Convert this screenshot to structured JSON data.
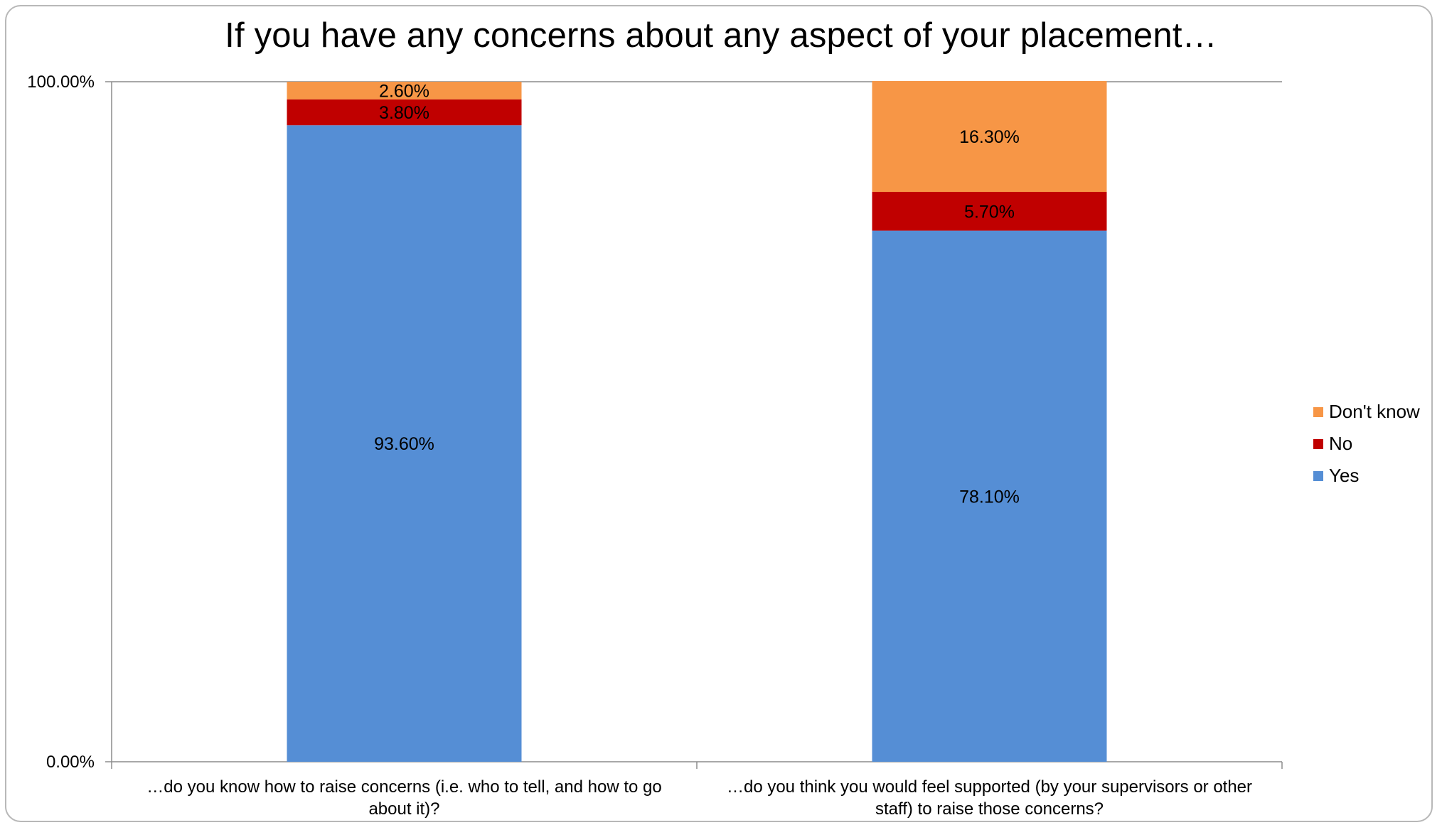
{
  "chart_data": {
    "type": "bar",
    "stacked": true,
    "title": "If you have any concerns about any aspect of your placement…",
    "categories": [
      [
        "…do you know how to raise concerns (i.e. who to tell, and how to go",
        "about it)?"
      ],
      [
        "…do you think you would feel supported (by your supervisors or other",
        "staff) to raise those concerns?"
      ]
    ],
    "series": [
      {
        "name": "Yes",
        "color": "#558ed5",
        "values": [
          93.6,
          78.1
        ],
        "labels": [
          "93.60%",
          "78.10%"
        ]
      },
      {
        "name": "No",
        "color": "#c00000",
        "values": [
          3.8,
          5.7
        ],
        "labels": [
          "3.80%",
          "5.70%"
        ]
      },
      {
        "name": "Don't know",
        "color": "#f79646",
        "values": [
          2.6,
          16.3
        ],
        "labels": [
          "2.60%",
          "16.30%"
        ]
      }
    ],
    "ylim": [
      0,
      100
    ],
    "yticks": [
      {
        "value": 0,
        "label": "0.00%"
      },
      {
        "value": 100,
        "label": "100.00%"
      }
    ],
    "legend": {
      "position": "right",
      "order": [
        "Don't know",
        "No",
        "Yes"
      ]
    },
    "grid": false
  }
}
